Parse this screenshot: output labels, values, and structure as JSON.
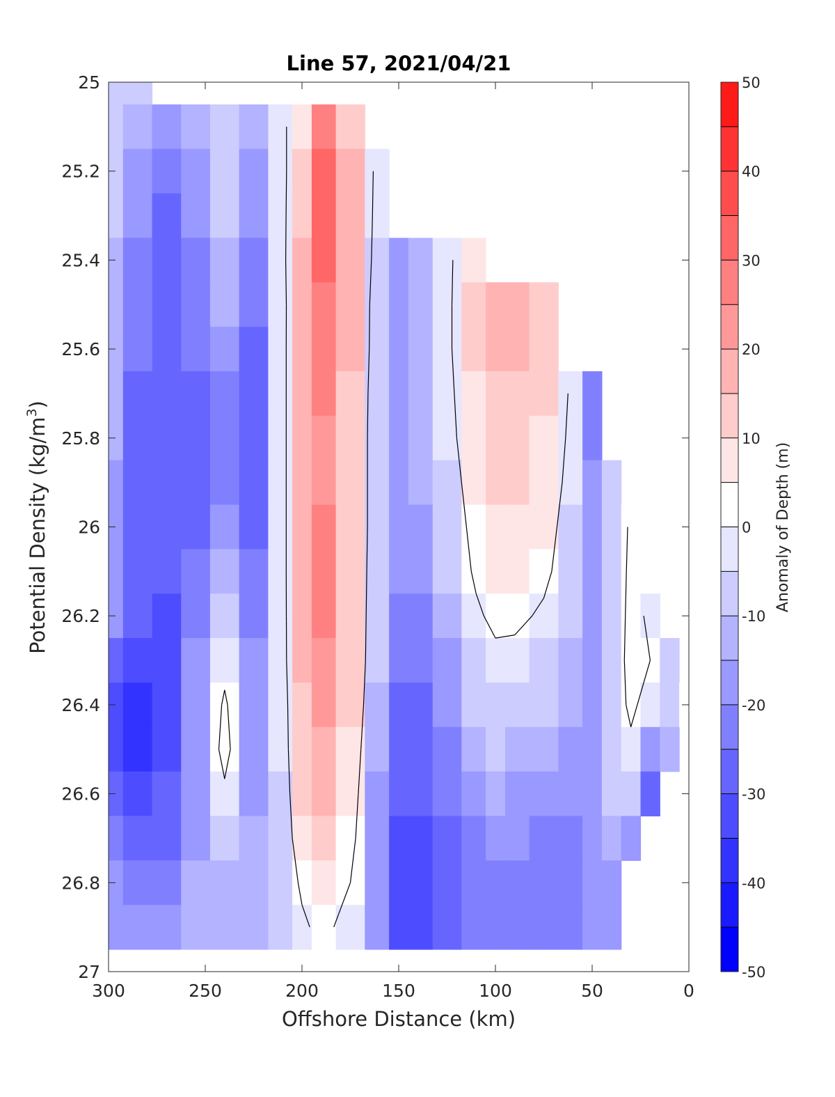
{
  "chart_data": {
    "type": "filled-contour",
    "title": "Line 57, 2021/04/21",
    "xlabel": "Offshore Distance (km)",
    "ylabel_main": "Potential Density (kg/m",
    "ylabel_sup": "3",
    "ylabel_tail": ")",
    "xlim": [
      300,
      0
    ],
    "ylim": [
      25,
      27
    ],
    "x_reversed": true,
    "y_reversed": true,
    "x_ticks": [
      300,
      250,
      200,
      150,
      100,
      50,
      0
    ],
    "y_ticks": [
      25,
      25.2,
      25.4,
      25.6,
      25.8,
      26,
      26.2,
      26.4,
      26.6,
      26.8,
      27
    ],
    "colorbar": {
      "label": "Anomaly of Depth (m)",
      "range": [
        -50,
        50
      ],
      "step": 5,
      "ticks": [
        50,
        40,
        30,
        20,
        10,
        0,
        -10,
        -20,
        -30,
        -40,
        -50
      ],
      "colors": [
        "#0000ff",
        "#1a1aff",
        "#3333ff",
        "#4d4dff",
        "#6666ff",
        "#8080ff",
        "#9999ff",
        "#b3b3ff",
        "#ccccff",
        "#e6e6ff",
        "#ffffff",
        "#ffe6e6",
        "#ffcccc",
        "#ffb3b3",
        "#ff9999",
        "#ff8080",
        "#ff6666",
        "#ff4d4d",
        "#ff3333",
        "#ff1a1a"
      ]
    },
    "x_grid": [
      300,
      285,
      270,
      255,
      240,
      225,
      210,
      200,
      190,
      175,
      160,
      150,
      140,
      125,
      110,
      100,
      90,
      75,
      60,
      50,
      40,
      30,
      20,
      10,
      0
    ],
    "y_grid": [
      25.0,
      25.1,
      25.2,
      25.3,
      25.4,
      25.5,
      25.6,
      25.7,
      25.8,
      25.9,
      26.0,
      26.1,
      26.2,
      26.3,
      26.4,
      26.5,
      26.6,
      26.7,
      26.8,
      26.9
    ],
    "data_coverage_note": "blank cells are outside the sampled region",
    "anomaly_m": [
      [
        -8,
        -10,
        null,
        null,
        null,
        null,
        null,
        null,
        null,
        null,
        null,
        null,
        null,
        null,
        null,
        null,
        null,
        null,
        null,
        null,
        null,
        null,
        null,
        null,
        null
      ],
      [
        -8,
        -15,
        -18,
        -14,
        -10,
        -15,
        -2,
        8,
        28,
        12,
        null,
        null,
        null,
        null,
        null,
        null,
        null,
        null,
        null,
        null,
        null,
        null,
        null,
        null,
        null
      ],
      [
        -10,
        -18,
        -24,
        -18,
        -8,
        -18,
        -3,
        12,
        33,
        15,
        -4,
        null,
        null,
        null,
        null,
        null,
        null,
        null,
        null,
        null,
        null,
        null,
        null,
        null,
        null
      ],
      [
        -10,
        -20,
        -26,
        -20,
        -9,
        -20,
        -3,
        14,
        32,
        16,
        -5,
        null,
        null,
        null,
        null,
        null,
        null,
        null,
        null,
        null,
        null,
        null,
        null,
        null,
        null
      ],
      [
        -12,
        -22,
        -28,
        -22,
        -12,
        -22,
        -3,
        16,
        30,
        16,
        -6,
        -16,
        -12,
        -2,
        8,
        null,
        null,
        null,
        null,
        null,
        null,
        null,
        null,
        null,
        null
      ],
      [
        -12,
        -24,
        -28,
        -22,
        -14,
        -24,
        -4,
        17,
        28,
        16,
        -8,
        -16,
        -12,
        -2,
        10,
        18,
        18,
        14,
        null,
        null,
        null,
        null,
        null,
        null,
        null
      ],
      [
        -12,
        -24,
        -28,
        -24,
        -18,
        -26,
        -4,
        18,
        26,
        15,
        -8,
        -16,
        -12,
        -2,
        10,
        17,
        17,
        13,
        null,
        null,
        null,
        null,
        null,
        null,
        null
      ],
      [
        -14,
        -26,
        -28,
        -26,
        -22,
        -26,
        -4,
        18,
        25,
        14,
        -9,
        -16,
        -13,
        -3,
        9,
        14,
        14,
        10,
        -2,
        -22,
        null,
        null,
        null,
        null,
        null
      ],
      [
        -14,
        -26,
        -30,
        -28,
        -25,
        -28,
        -4,
        18,
        24,
        13,
        -9,
        -16,
        -14,
        -4,
        8,
        12,
        12,
        9,
        -3,
        -22,
        null,
        null,
        null,
        null,
        null
      ],
      [
        -16,
        -26,
        -30,
        -28,
        -24,
        -28,
        -4,
        18,
        24,
        13,
        -9,
        -16,
        -15,
        -6,
        6,
        10,
        10,
        7,
        -4,
        -20,
        -10,
        null,
        null,
        null,
        null
      ],
      [
        -16,
        -28,
        -30,
        -26,
        -20,
        -28,
        -4,
        18,
        26,
        13,
        -9,
        -18,
        -18,
        -8,
        4,
        8,
        8,
        5,
        -6,
        -18,
        -10,
        2,
        null,
        null,
        null
      ],
      [
        -18,
        -28,
        -30,
        -24,
        -14,
        -24,
        -4,
        18,
        26,
        13,
        -10,
        -20,
        -20,
        -10,
        2,
        6,
        6,
        3,
        -8,
        -18,
        -10,
        3,
        null,
        null,
        null
      ],
      [
        -20,
        -30,
        -32,
        -22,
        -8,
        -22,
        -4,
        17,
        25,
        12,
        -10,
        -22,
        -22,
        -12,
        -2,
        3,
        3,
        -2,
        -10,
        -18,
        -10,
        4,
        -2,
        null,
        null
      ],
      [
        -26,
        -34,
        -34,
        -20,
        -4,
        -20,
        -4,
        16,
        23,
        11,
        -10,
        -24,
        -24,
        -16,
        -6,
        -3,
        -4,
        -6,
        -12,
        -18,
        -8,
        4,
        0,
        -8,
        null
      ],
      [
        -32,
        -36,
        -34,
        -18,
        2,
        -18,
        -5,
        14,
        21,
        10,
        -12,
        -26,
        -26,
        -20,
        -10,
        -6,
        -8,
        -10,
        -14,
        -18,
        -6,
        2,
        -4,
        -10,
        4
      ],
      [
        -32,
        -36,
        -32,
        -16,
        4,
        -16,
        -5,
        12,
        18,
        8,
        -14,
        -28,
        -28,
        -22,
        -14,
        -10,
        -12,
        -14,
        -16,
        -18,
        -6,
        -2,
        -16,
        -14,
        null
      ],
      [
        -28,
        -32,
        -30,
        -16,
        -2,
        -16,
        -6,
        10,
        15,
        6,
        -16,
        -30,
        -30,
        -24,
        -18,
        -14,
        -16,
        -18,
        -20,
        -18,
        -10,
        -10,
        -30,
        null,
        null
      ],
      [
        -22,
        -28,
        -26,
        -18,
        -10,
        -14,
        -6,
        6,
        12,
        4,
        -18,
        -32,
        -32,
        -26,
        -22,
        -18,
        -20,
        -22,
        -22,
        -20,
        -14,
        -20,
        null,
        null,
        null
      ],
      [
        -18,
        -22,
        -22,
        -14,
        -12,
        -12,
        -8,
        2,
        7,
        0,
        -20,
        -34,
        -34,
        -28,
        -24,
        -22,
        -22,
        -24,
        -24,
        -20,
        -16,
        null,
        null,
        null,
        null
      ],
      [
        -16,
        -18,
        -18,
        -12,
        -12,
        -12,
        -10,
        -2,
        3,
        -4,
        -20,
        -34,
        -34,
        -28,
        -24,
        -24,
        -24,
        -24,
        -24,
        -20,
        -16,
        null,
        null,
        null,
        null
      ]
    ],
    "zero_contour_note": "black lines mark the 0 m anomaly contour"
  }
}
